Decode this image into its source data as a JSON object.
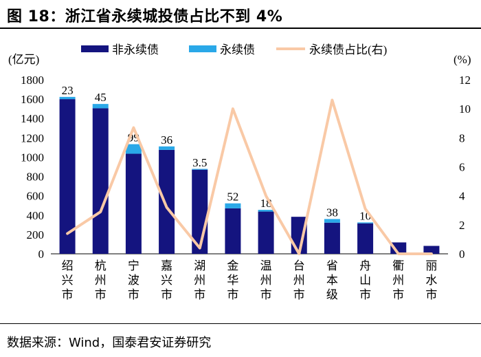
{
  "header": {
    "title": "图 18：浙江省永续城投债占比不到 4%"
  },
  "footer": {
    "source": "数据来源：Wind，国泰君安证券研究"
  },
  "colors": {
    "non_perpetual": "#14147f",
    "perpetual": "#2aa8e8",
    "ratio_line": "#f9c9a6"
  },
  "chart_data": {
    "type": "bar+line",
    "title": "浙江省永续城投债占比不到 4%",
    "categories": [
      "绍兴市",
      "杭州市",
      "宁波市",
      "嘉兴市",
      "湖州市",
      "金华市",
      "温州市",
      "台州市",
      "省本级",
      "舟山市",
      "衢州市",
      "丽水市"
    ],
    "y_left": {
      "label": "(亿元)",
      "lim": [
        0,
        1800
      ],
      "ticks": [
        0,
        200,
        400,
        600,
        800,
        1000,
        1200,
        1400,
        1600,
        1800
      ]
    },
    "y_right": {
      "label": "(%)",
      "lim": [
        0,
        12
      ],
      "ticks": [
        0,
        2,
        4,
        6,
        8,
        10,
        12
      ]
    },
    "series": [
      {
        "name": "非永续债",
        "type": "stacked-bar",
        "axis": "left",
        "values": [
          1600,
          1505,
          1035,
          1075,
          870,
          470,
          437,
          383,
          322,
          315,
          118,
          82
        ]
      },
      {
        "name": "永续债",
        "type": "stacked-bar",
        "axis": "left",
        "values": [
          23,
          45,
          99,
          36,
          3.5,
          52,
          18,
          0,
          38,
          10,
          0,
          0
        ]
      },
      {
        "name": "永续债占比(右)",
        "type": "line",
        "axis": "right",
        "values": [
          1.4,
          2.9,
          8.7,
          3.2,
          0.4,
          10.0,
          4.0,
          0.0,
          10.6,
          3.1,
          0.0,
          0.0
        ]
      }
    ],
    "data_labels": [
      "23",
      "45",
      "99",
      "36",
      "3.5",
      "52",
      "18",
      "",
      "38",
      "10",
      "",
      ""
    ],
    "legend": {
      "position": "top",
      "entries": [
        "非永续债",
        "永续债",
        "永续债占比(右)"
      ]
    }
  }
}
